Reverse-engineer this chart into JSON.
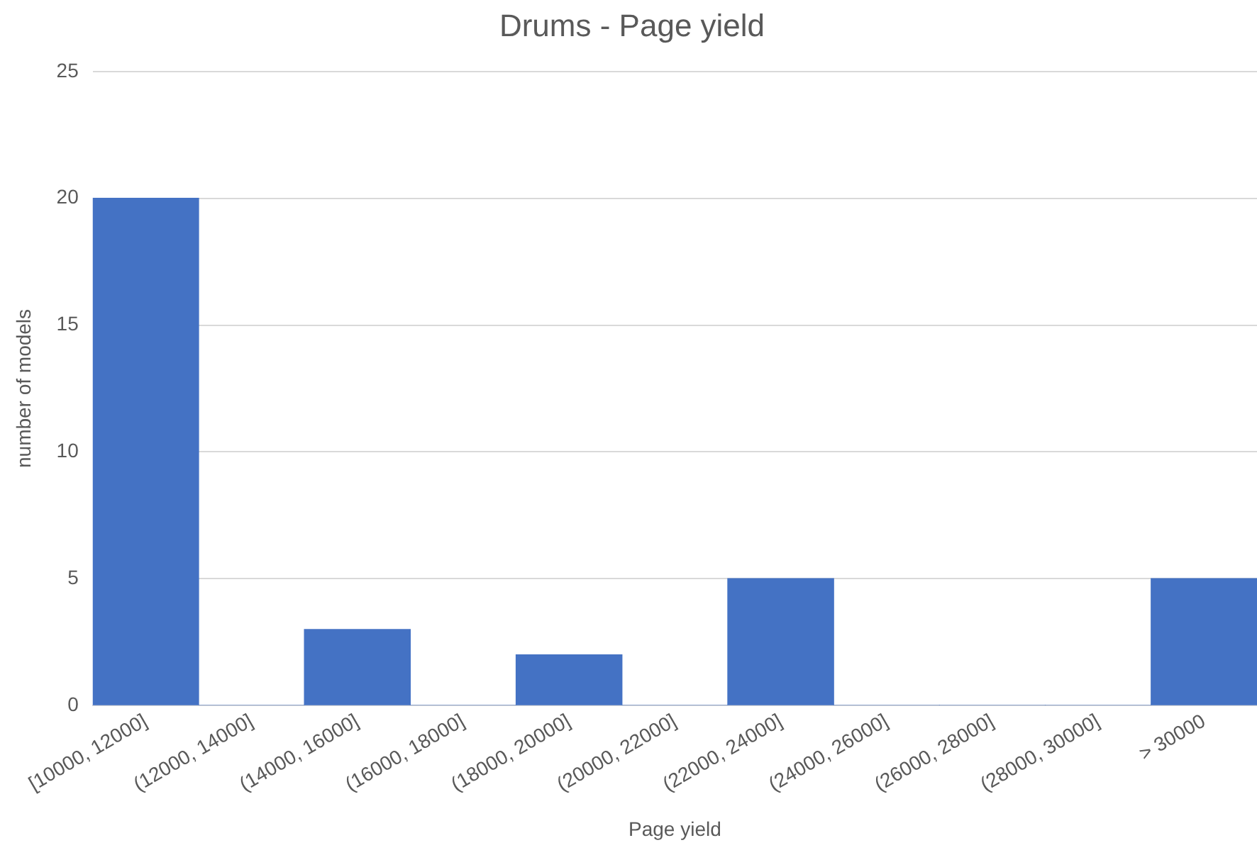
{
  "chart_data": {
    "type": "bar",
    "title": "Drums - Page yield",
    "xlabel": "Page yield",
    "ylabel": "number of models",
    "categories": [
      "[10000, 12000]",
      "(12000, 14000]",
      "(14000, 16000]",
      "(16000, 18000]",
      "(18000, 20000]",
      "(20000, 22000]",
      "(22000, 24000]",
      "(24000, 26000]",
      "(26000, 28000]",
      "(28000, 30000]",
      "> 30000"
    ],
    "values": [
      20,
      0,
      3,
      0,
      2,
      0,
      5,
      0,
      0,
      0,
      5
    ],
    "color": "#4472c4",
    "ylim": [
      0,
      25
    ],
    "yticks": [
      0,
      5,
      10,
      15,
      20,
      25
    ],
    "grid": "y",
    "legend": false
  }
}
